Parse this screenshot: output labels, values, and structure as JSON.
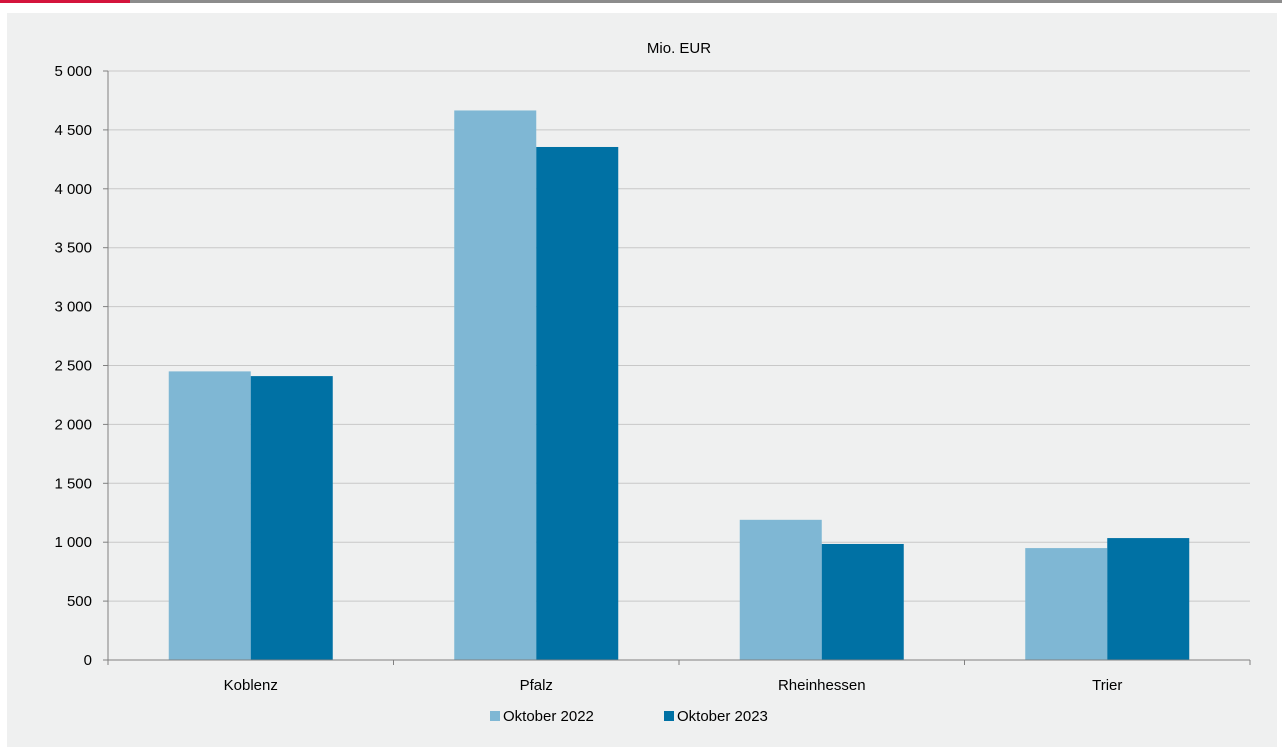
{
  "chart_data": {
    "type": "bar",
    "title": "Mio. EUR",
    "xlabel": "",
    "ylabel": "",
    "categories": [
      "Koblenz",
      "Pfalz",
      "Rheinhessen",
      "Trier"
    ],
    "series": [
      {
        "name": "Oktober 2022",
        "values": [
          2450,
          4665,
          1190,
          950
        ],
        "color": "#7fb7d4"
      },
      {
        "name": "Oktober 2023",
        "values": [
          2410,
          4355,
          985,
          1035
        ],
        "color": "#0071a4"
      }
    ],
    "ylim": [
      0,
      5000
    ],
    "yticks": [
      0,
      500,
      1000,
      1500,
      2000,
      2500,
      3000,
      3500,
      4000,
      4500,
      5000
    ],
    "ytick_labels": [
      "0",
      "500",
      "1 000",
      "1 500",
      "2 000",
      "2 500",
      "3 000",
      "3 500",
      "4 000",
      "4 500",
      "5 000"
    ],
    "grid": true,
    "legend_position": "bottom-center"
  },
  "colors": {
    "accent": "#d4143c",
    "background": "#eff0f0",
    "gridline": "#c8c8c8"
  }
}
